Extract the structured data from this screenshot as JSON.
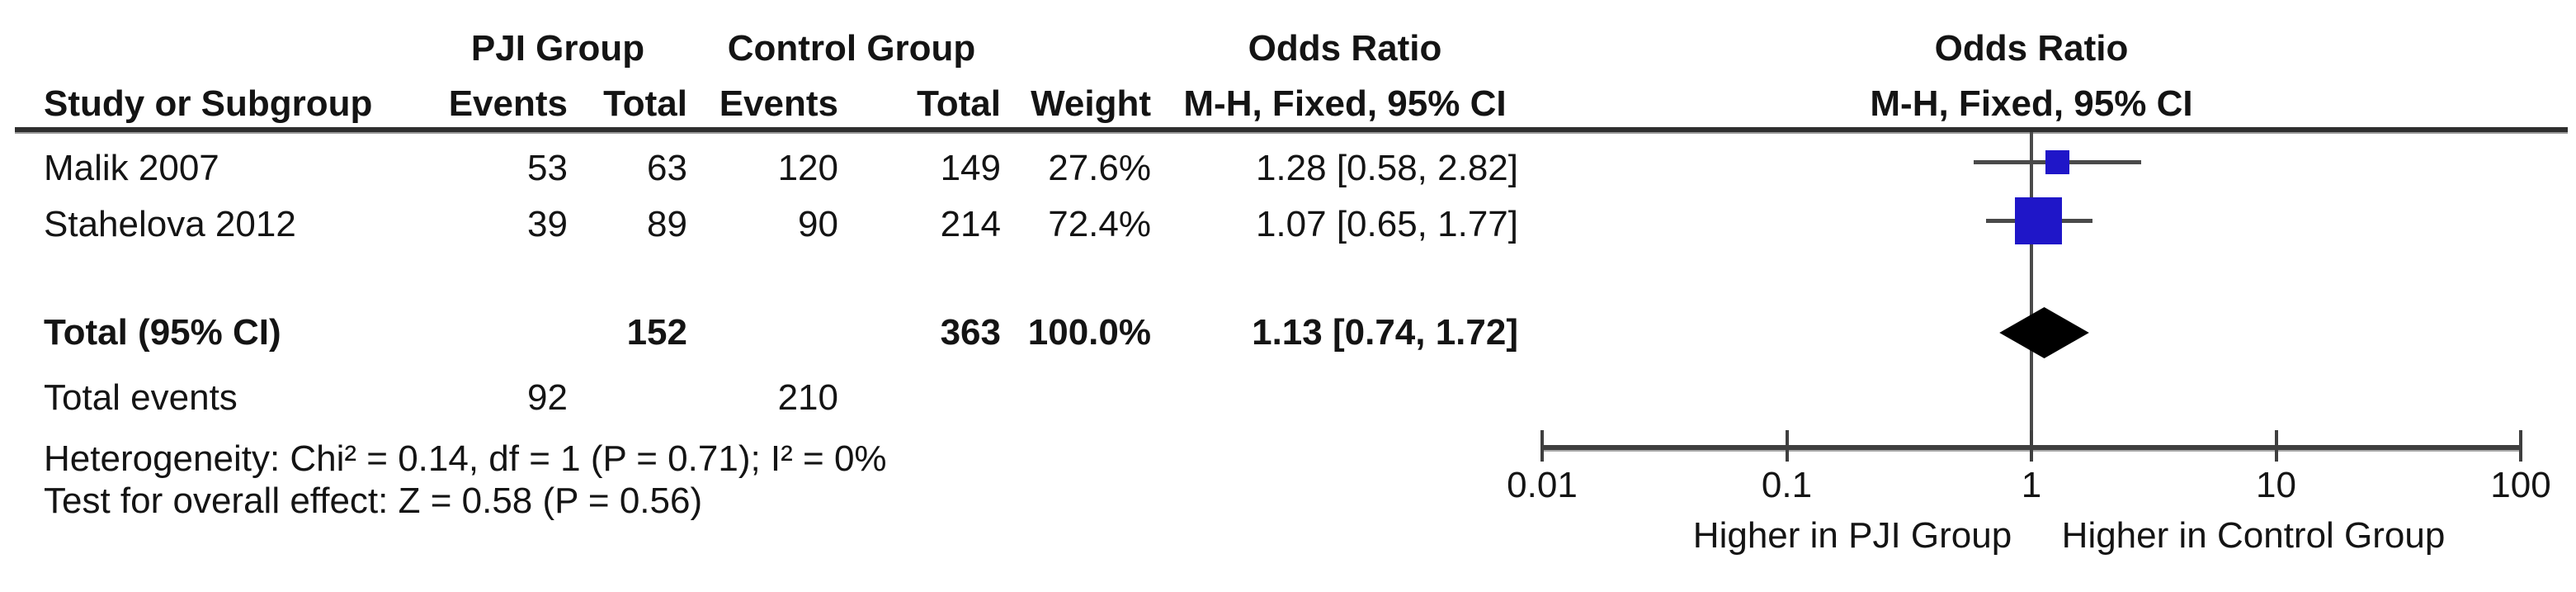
{
  "table": {
    "group1_header": "PJI Group",
    "group2_header": "Control Group",
    "or_column_header": "Odds Ratio",
    "or_column_subheader": "M-H, Fixed, 95% CI",
    "plot_header": "Odds Ratio",
    "plot_subheader": "M-H, Fixed, 95% CI",
    "columns": {
      "study": "Study or Subgroup",
      "events1": "Events",
      "total1": "Total",
      "events2": "Events",
      "total2": "Total",
      "weight": "Weight"
    },
    "rows": [
      {
        "study": "Malik 2007",
        "events1": "53",
        "total1": "63",
        "events2": "120",
        "total2": "149",
        "weight": "27.6%",
        "or_ci": "1.28 [0.58, 2.82]"
      },
      {
        "study": "Stahelova 2012",
        "events1": "39",
        "total1": "89",
        "events2": "90",
        "total2": "214",
        "weight": "72.4%",
        "or_ci": "1.07 [0.65, 1.77]"
      }
    ],
    "total_row": {
      "label": "Total (95% CI)",
      "total1": "152",
      "total2": "363",
      "weight": "100.0%",
      "or_ci": "1.13 [0.74, 1.72]"
    },
    "total_events_row": {
      "label": "Total events",
      "events1": "92",
      "events2": "210"
    },
    "heterogeneity": "Heterogeneity: Chi² = 0.14, df = 1 (P = 0.71); I² = 0%",
    "overall_effect": "Test for overall effect: Z = 0.58 (P = 0.56)"
  },
  "chart_data": {
    "type": "forest",
    "x_scale": "log10",
    "axis_range": [
      0.01,
      100
    ],
    "axis_ticks": [
      "0.01",
      "0.1",
      "1",
      "10",
      "100"
    ],
    "null_line": 1,
    "studies": [
      {
        "name": "Malik 2007",
        "or": 1.28,
        "ci_low": 0.58,
        "ci_high": 2.82,
        "weight_pct": 27.6
      },
      {
        "name": "Stahelova 2012",
        "or": 1.07,
        "ci_low": 0.65,
        "ci_high": 1.77,
        "weight_pct": 72.4
      }
    ],
    "total": {
      "label": "Total (95% CI)",
      "or": 1.13,
      "ci_low": 0.74,
      "ci_high": 1.72,
      "weight_pct": 100.0
    },
    "footer_left_label": "Higher in PJI Group",
    "footer_right_label": "Higher in Control Group",
    "colors": {
      "marker": "#1f16c8",
      "diamond": "#000000",
      "line": "#4a4a4a"
    }
  }
}
